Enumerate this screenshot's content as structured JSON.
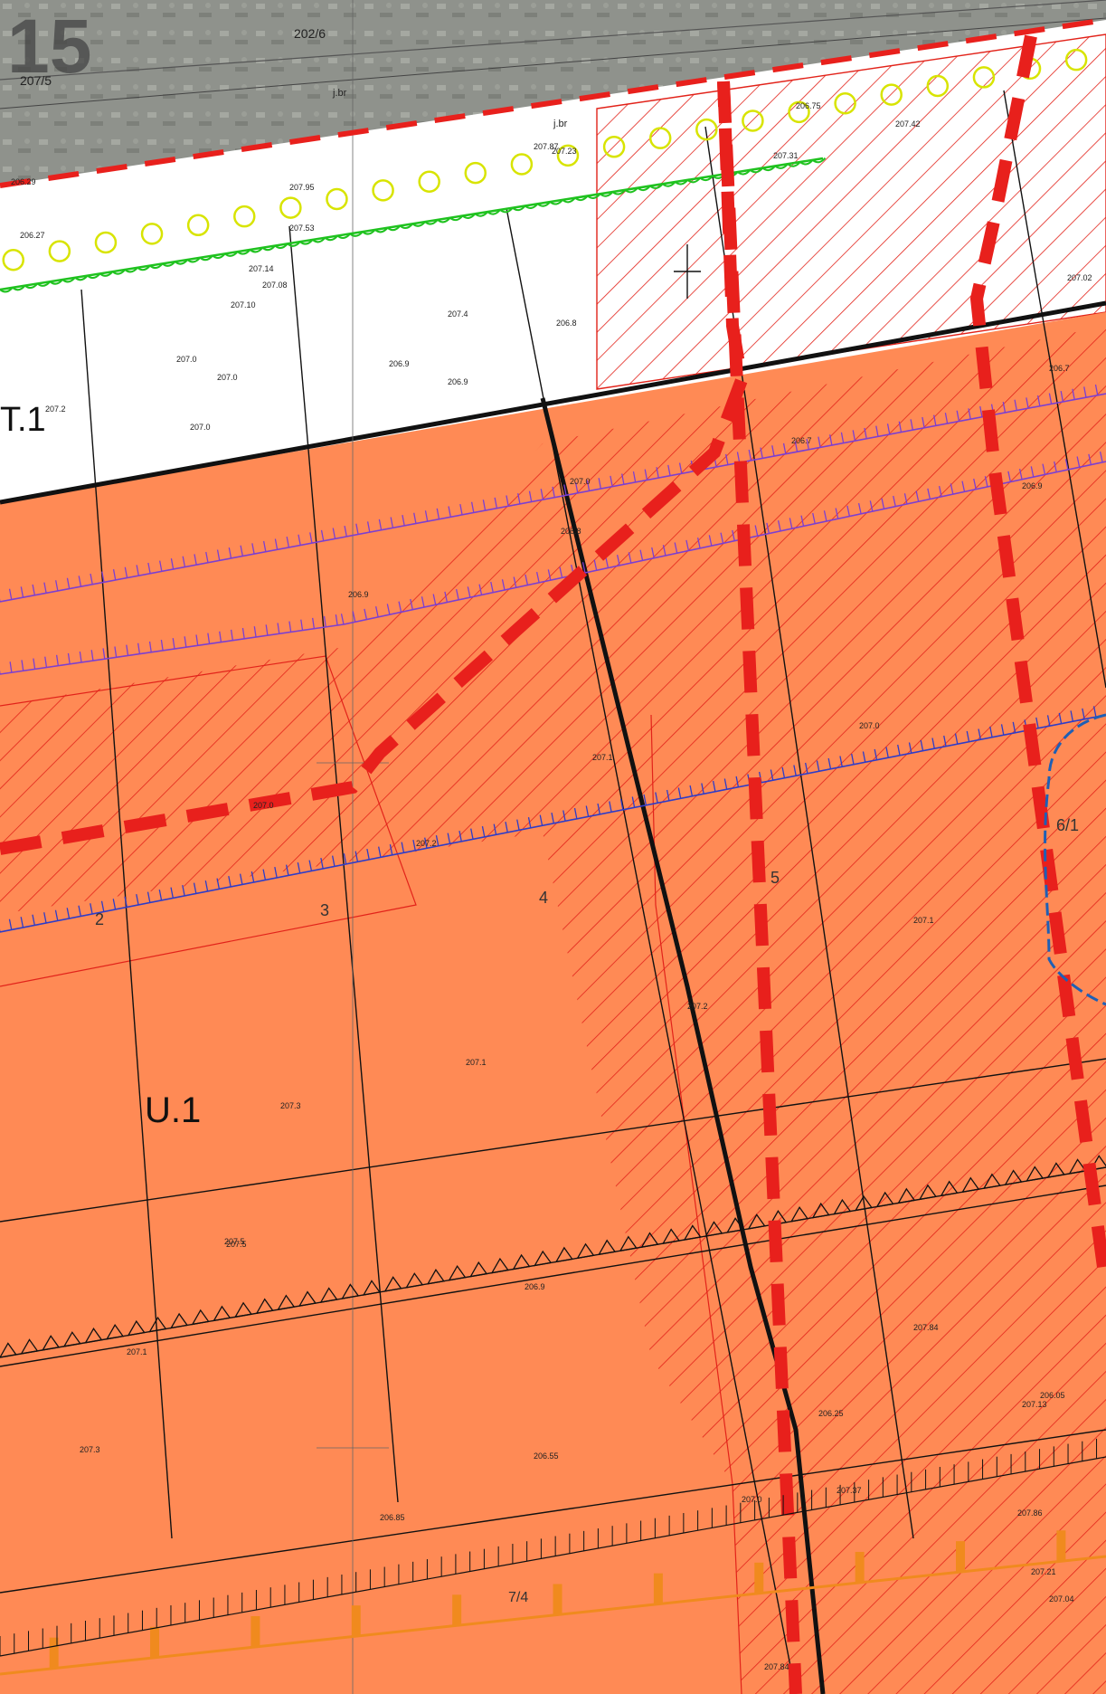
{
  "sheet_number": "15",
  "aerial_labels": [
    "202/6",
    "207/5",
    "j.br",
    "j.br",
    "j.bri."
  ],
  "zones": [
    {
      "id": "T.1",
      "label": "T.1"
    },
    {
      "id": "U.1",
      "label": "U.1"
    }
  ],
  "plot_numbers": [
    "2",
    "3",
    "4",
    "5",
    "6/1",
    "7/4"
  ],
  "elevations": [
    "207.0",
    "207.0",
    "207.0",
    "207.4",
    "206.9",
    "206.9",
    "206.8",
    "207.2",
    "206.8",
    "206.9",
    "207.0",
    "207.1",
    "207.2",
    "207.0",
    "207.3",
    "207.5",
    "207.1",
    "207.2",
    "207.1",
    "207.5",
    "206.9",
    "207.3",
    "206.55",
    "206.85",
    "207.84",
    "207.86",
    "207.04",
    "207.02",
    "207.0",
    "206.7",
    "206.9",
    "207.1",
    "207.10",
    "207.08",
    "207.14",
    "207.53",
    "207.95",
    "207.87",
    "207.31",
    "207.23",
    "206.75",
    "207.42",
    "207.13",
    "207.37",
    "207.21",
    "206.05",
    "206.25",
    "207.84",
    "206.29",
    "206.27",
    "206.7",
    "207.0"
  ],
  "colors": {
    "development_zone": "#ff8a55",
    "hatch_red": "#e2231a",
    "boundary_dashed": "#e8201c",
    "utility_purple": "#7b3fd1",
    "embankment_blue": "#2d3cc8",
    "hedge_green": "#1fc21f",
    "tree_yellow": "#d8e400",
    "fence_orange": "#f08a1e",
    "water_blue": "#1e5fb5",
    "aerial_base": "#8f928c"
  },
  "icons": [
    "tree-circle-icon",
    "north-arrow-icon"
  ]
}
